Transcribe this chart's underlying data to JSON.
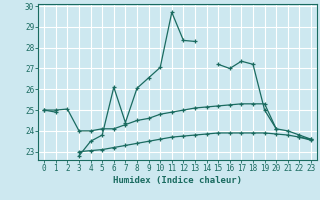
{
  "xlabel": "Humidex (Indice chaleur)",
  "background_color": "#cde8f0",
  "grid_color": "#ffffff",
  "line_color": "#1a6b60",
  "x_values": [
    0,
    1,
    2,
    3,
    4,
    5,
    6,
    7,
    8,
    9,
    10,
    11,
    12,
    13,
    14,
    15,
    16,
    17,
    18,
    19,
    20,
    21,
    22,
    23
  ],
  "line1_y": [
    25.0,
    24.9,
    null,
    22.8,
    23.5,
    23.8,
    26.1,
    24.4,
    26.05,
    26.55,
    27.05,
    29.7,
    28.35,
    28.3,
    null,
    27.2,
    27.0,
    27.35,
    27.2,
    25.0,
    24.1,
    null,
    23.7,
    23.55
  ],
  "line2_y": [
    25.0,
    25.0,
    25.05,
    24.0,
    24.0,
    24.1,
    24.1,
    24.3,
    24.5,
    24.6,
    24.8,
    24.9,
    25.0,
    25.1,
    25.15,
    25.2,
    25.25,
    25.3,
    25.3,
    25.3,
    24.1,
    24.0,
    23.8,
    23.6
  ],
  "line3_y": [
    null,
    null,
    null,
    23.0,
    23.05,
    23.1,
    23.2,
    23.3,
    23.4,
    23.5,
    23.6,
    23.7,
    23.75,
    23.8,
    23.85,
    23.9,
    23.9,
    23.9,
    23.9,
    23.9,
    23.85,
    23.8,
    23.7,
    23.6
  ],
  "ylim": [
    22.6,
    30.1
  ],
  "xlim": [
    -0.5,
    23.5
  ],
  "yticks": [
    23,
    24,
    25,
    26,
    27,
    28,
    29,
    30
  ],
  "xticks": [
    0,
    1,
    2,
    3,
    4,
    5,
    6,
    7,
    8,
    9,
    10,
    11,
    12,
    13,
    14,
    15,
    16,
    17,
    18,
    19,
    20,
    21,
    22,
    23
  ]
}
